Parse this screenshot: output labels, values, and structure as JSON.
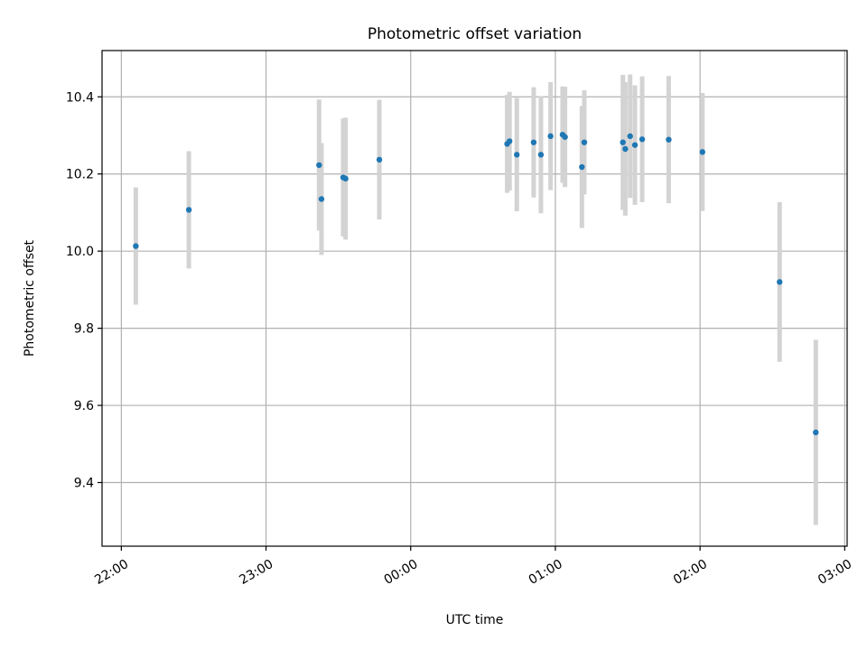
{
  "chart_data": {
    "type": "scatter",
    "title": "Photometric offset variation",
    "xlabel": "UTC time",
    "ylabel": "Photometric offset",
    "grid": true,
    "xlim": [
      "21:52",
      "03:01"
    ],
    "ylim": [
      9.235,
      10.52
    ],
    "x_ticks": [
      "22:00",
      "23:00",
      "00:00",
      "01:00",
      "02:00",
      "03:00"
    ],
    "y_ticks": [
      "9.4",
      "9.6",
      "9.8",
      "10.0",
      "10.2",
      "10.4"
    ],
    "point_color": "#1f77b4",
    "errorbar_color": "#d3d3d3",
    "points": [
      {
        "x": "22:06",
        "y": 10.013,
        "yerr": 0.152
      },
      {
        "x": "22:28",
        "y": 10.107,
        "yerr": 0.152
      },
      {
        "x": "23:22",
        "y": 10.223,
        "yerr": 0.17
      },
      {
        "x": "23:23",
        "y": 10.135,
        "yerr": 0.145
      },
      {
        "x": "23:32",
        "y": 10.191,
        "yerr": 0.153
      },
      {
        "x": "23:33",
        "y": 10.188,
        "yerr": 0.158
      },
      {
        "x": "23:47",
        "y": 10.237,
        "yerr": 0.155
      },
      {
        "x": "00:40",
        "y": 10.278,
        "yerr": 0.127
      },
      {
        "x": "00:41",
        "y": 10.285,
        "yerr": 0.128
      },
      {
        "x": "00:44",
        "y": 10.25,
        "yerr": 0.147
      },
      {
        "x": "00:51",
        "y": 10.282,
        "yerr": 0.143
      },
      {
        "x": "00:54",
        "y": 10.25,
        "yerr": 0.152
      },
      {
        "x": "00:58",
        "y": 10.298,
        "yerr": 0.14
      },
      {
        "x": "01:03",
        "y": 10.302,
        "yerr": 0.125
      },
      {
        "x": "01:04",
        "y": 10.296,
        "yerr": 0.13
      },
      {
        "x": "01:11",
        "y": 10.218,
        "yerr": 0.158
      },
      {
        "x": "01:12",
        "y": 10.282,
        "yerr": 0.135
      },
      {
        "x": "01:28",
        "y": 10.282,
        "yerr": 0.175
      },
      {
        "x": "01:29",
        "y": 10.265,
        "yerr": 0.173
      },
      {
        "x": "01:31",
        "y": 10.298,
        "yerr": 0.16
      },
      {
        "x": "01:33",
        "y": 10.275,
        "yerr": 0.155
      },
      {
        "x": "01:36",
        "y": 10.29,
        "yerr": 0.163
      },
      {
        "x": "01:47",
        "y": 10.289,
        "yerr": 0.165
      },
      {
        "x": "02:01",
        "y": 10.257,
        "yerr": 0.153
      },
      {
        "x": "02:33",
        "y": 9.92,
        "yerr": 0.207
      },
      {
        "x": "02:48",
        "y": 9.53,
        "yerr": 0.24
      }
    ]
  }
}
